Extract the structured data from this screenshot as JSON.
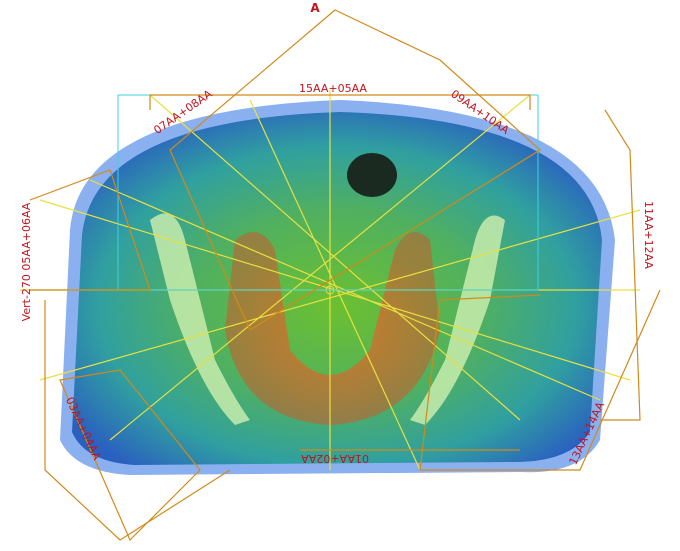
{
  "labels": {
    "anterior": "A",
    "top": "15AA+05AA",
    "upper_left": "07AA+08AA",
    "upper_right": "09AA+10AA",
    "right": "11AA+12AA",
    "left": "Vert-270 05AA+06AA",
    "bottom": "01AA+02AA",
    "lower_left": "03AA+04AA",
    "lower_right": "13AA+14AA"
  }
}
